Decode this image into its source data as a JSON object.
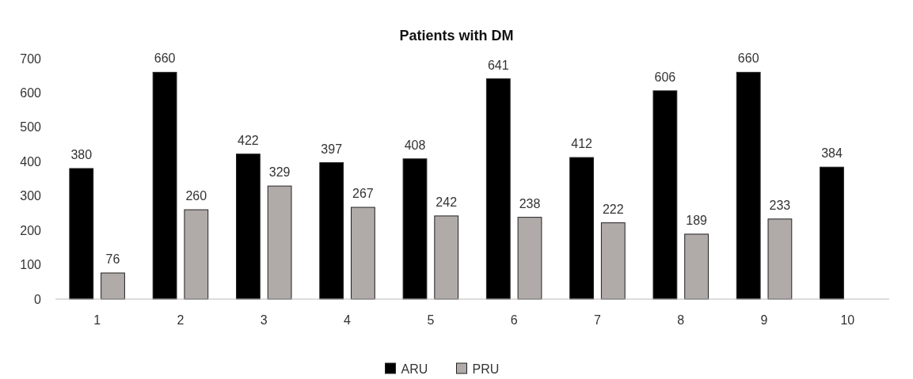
{
  "chart_data": {
    "type": "bar",
    "title": "Patients with DM",
    "categories": [
      "1",
      "2",
      "3",
      "4",
      "5",
      "6",
      "7",
      "8",
      "9",
      "10"
    ],
    "series": [
      {
        "name": "ARU",
        "color": "#000000",
        "values": [
          380,
          660,
          422,
          397,
          408,
          641,
          412,
          606,
          660,
          384
        ]
      },
      {
        "name": "PRU",
        "color": "#b0aaa8",
        "values": [
          76,
          260,
          329,
          267,
          242,
          238,
          222,
          189,
          233,
          null
        ]
      }
    ],
    "ylim": [
      0,
      700
    ],
    "yticks": [
      0,
      100,
      200,
      300,
      400,
      500,
      600,
      700
    ],
    "grid": false,
    "legend": "bottom",
    "data_labels": true
  }
}
